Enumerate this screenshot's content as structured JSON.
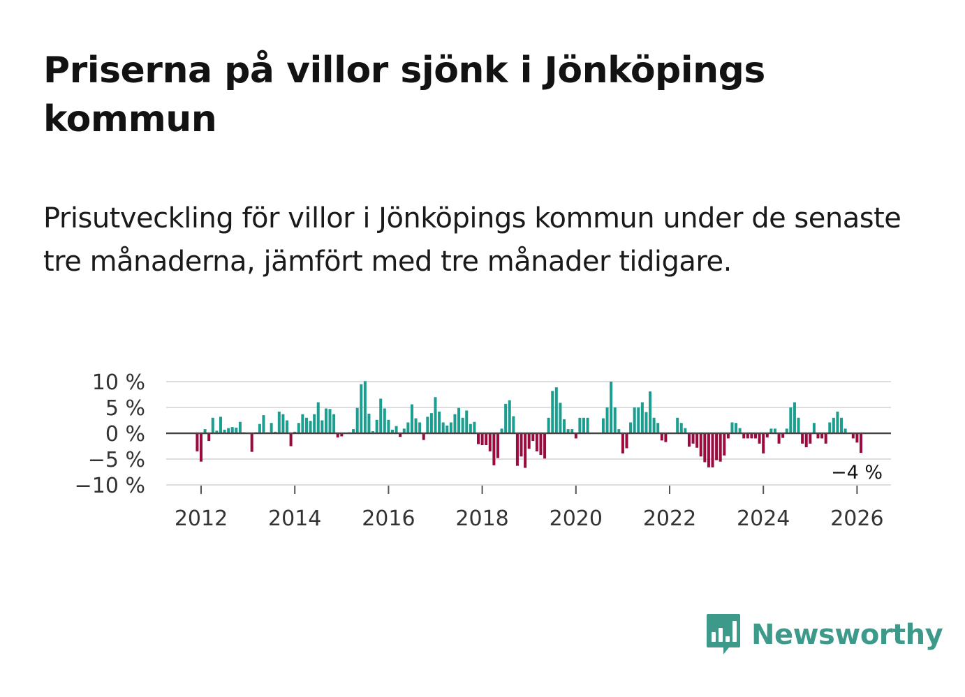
{
  "header": {
    "title": "Priserna på villor sjönk i Jönköpings kommun",
    "subtitle": "Prisutveckling för villor i Jönköpings kommun under de senaste tre månaderna, jämfört med tre månader tidigare."
  },
  "colors": {
    "positive": "#1b9e8f",
    "negative": "#9b0a3f",
    "grid": "#dddddd",
    "zero": "#444444",
    "brand": "#3d9a8b"
  },
  "logo": {
    "name": "Newsworthy",
    "icon": "bar-chart-speech-icon"
  },
  "chart_data": {
    "type": "bar",
    "title": "",
    "xlabel": "",
    "ylabel": "",
    "ylim": [
      -10,
      10
    ],
    "y_ticks": [
      10,
      5,
      0,
      -5,
      -10
    ],
    "y_tick_labels": [
      "10 %",
      "5 %",
      "0 %",
      "−5 %",
      "−10 %"
    ],
    "x_ticks": [
      2012,
      2014,
      2016,
      2018,
      2020,
      2022,
      2024,
      2026
    ],
    "x_tick_labels": [
      "2012",
      "2014",
      "2016",
      "2018",
      "2020",
      "2022",
      "2024",
      "2026"
    ],
    "start": "2011-12",
    "end": "2025-12",
    "last_label": "−4 %",
    "values": [
      -3.5,
      -5.5,
      0.8,
      -1.5,
      3.0,
      0.5,
      3.2,
      0.7,
      1.0,
      1.2,
      1.1,
      2.2,
      0.2,
      0.1,
      -3.6,
      0.2,
      1.8,
      3.5,
      0.2,
      2.0,
      0.3,
      4.2,
      3.7,
      2.5,
      -2.5,
      0.3,
      2.0,
      3.7,
      3.0,
      2.4,
      3.7,
      6.0,
      2.5,
      4.8,
      4.7,
      3.7,
      -0.8,
      -0.6,
      0.1,
      0.2,
      0.8,
      4.9,
      9.5,
      10.1,
      3.8,
      0.4,
      2.6,
      6.7,
      4.8,
      2.6,
      0.7,
      1.4,
      -0.7,
      0.9,
      2.1,
      5.6,
      2.9,
      2.1,
      -1.3,
      3.2,
      3.9,
      7.0,
      4.2,
      2.1,
      1.5,
      2.1,
      3.7,
      4.9,
      3.0,
      4.4,
      1.8,
      2.2,
      -2.1,
      -2.3,
      -2.3,
      -3.5,
      -6.2,
      -4.8,
      0.9,
      5.7,
      6.4,
      3.3,
      -6.3,
      -4.5,
      -6.7,
      -3.0,
      -1.5,
      -3.5,
      -4.2,
      -4.9,
      3.0,
      8.2,
      8.9,
      5.9,
      2.7,
      0.8,
      0.8,
      -1.0,
      3.0,
      3.0,
      3.0,
      0.1,
      0.1,
      0.1,
      2.9,
      5.0,
      10.0,
      5.0,
      0.8,
      -3.9,
      -2.9,
      2.1,
      5.0,
      5.0,
      6.0,
      4.1,
      8.1,
      3.0,
      2.0,
      -1.4,
      -1.7,
      0.1,
      0.1,
      3.0,
      2.0,
      1.0,
      -2.6,
      -2.0,
      -2.8,
      -4.5,
      -5.6,
      -6.6,
      -6.6,
      -5.2,
      -5.5,
      -4.3,
      -1.0,
      2.1,
      2.0,
      1.0,
      -1.0,
      -1.0,
      -1.0,
      -1.0,
      -2.0,
      -3.9,
      -0.8,
      0.9,
      0.9,
      -2.0,
      -0.9,
      0.9,
      5.0,
      6.0,
      3.0,
      -2.0,
      -2.7,
      -2.0,
      2.0,
      -1.0,
      -1.0,
      -2.0,
      2.1,
      3.0,
      4.2,
      3.0,
      0.9,
      0.1,
      -1.0,
      -1.8,
      -3.8
    ]
  }
}
